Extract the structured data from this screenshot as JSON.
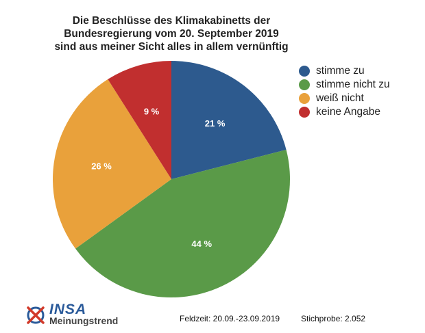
{
  "chart_data": {
    "type": "pie",
    "title_lines": [
      "Die Beschlüsse des Klimakabinetts der",
      "Bundesregierung vom 20. September 2019",
      "sind aus meiner Sicht alles in allem vernünftig"
    ],
    "categories": [
      "stimme zu",
      "stimme nicht zu",
      "weiß nicht",
      "keine Angabe"
    ],
    "values": [
      21,
      44,
      26,
      9
    ],
    "labels": [
      "21 %",
      "44 %",
      "26 %",
      "9 %"
    ],
    "colors": [
      "#2d5a8e",
      "#5a9a48",
      "#e9a13b",
      "#c12f2f"
    ],
    "legend_position": "top-right"
  },
  "footer": {
    "brand": "INSA",
    "brand_sub": "Meinungstrend",
    "feldzeit": "Feldzeit: 20.09.-23.09.2019",
    "stichprobe": "Stichprobe: 2.052"
  }
}
